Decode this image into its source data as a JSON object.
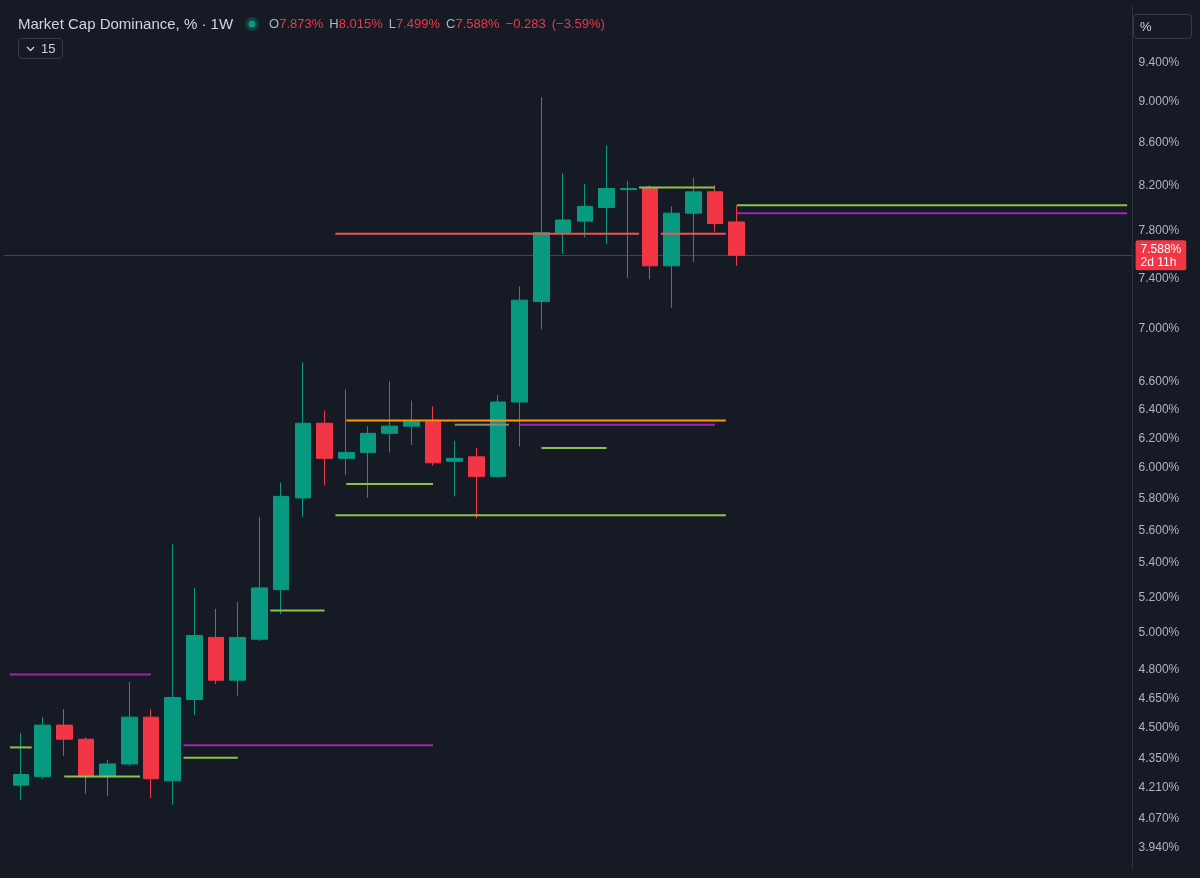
{
  "chart_data": {
    "type": "candlestick",
    "title": "Market Cap Dominance, % · 1W",
    "subtitle": "O7.873% H8.015% L7.499% C7.588% −0.283 (−3.59%)",
    "categories": [
      null,
      null,
      null,
      null,
      null,
      null,
      null,
      null,
      null,
      null,
      null,
      null,
      null,
      null,
      null,
      null,
      null,
      null,
      null,
      null,
      null,
      null,
      null,
      null,
      null,
      null,
      null,
      null,
      null,
      null,
      null,
      null,
      null,
      null,
      null,
      null,
      null,
      null,
      null,
      null,
      null,
      null,
      null,
      null,
      null,
      null,
      null,
      null,
      null,
      null,
      null,
      null,
      null,
      null,
      null,
      null,
      null,
      null,
      null,
      null,
      null,
      null,
      null,
      null,
      null,
      null,
      null,
      null,
      null,
      null,
      null,
      null,
      null,
      null,
      null,
      null,
      null,
      null,
      null,
      null,
      null,
      null,
      null,
      null,
      null,
      null,
      null,
      null,
      null,
      null,
      null,
      null,
      null,
      null,
      null,
      null,
      null,
      null,
      null,
      null,
      null,
      null,
      null,
      null
    ],
    "ohlc": [
      null,
      [
        4.22,
        4.47,
        4.15,
        4.27
      ],
      null,
      [
        4.26,
        4.55,
        4.25,
        4.51
      ],
      null,
      [
        4.51,
        4.59,
        4.36,
        4.44
      ],
      null,
      [
        4.44,
        4.45,
        4.18,
        4.26
      ],
      null,
      [
        4.26,
        4.34,
        4.17,
        4.32
      ],
      null,
      [
        4.32,
        4.73,
        4.31,
        4.55
      ],
      null,
      [
        4.55,
        4.59,
        4.16,
        4.25
      ],
      null,
      [
        4.24,
        5.51,
        4.13,
        4.65
      ],
      null,
      [
        4.64,
        5.25,
        4.56,
        4.98
      ],
      null,
      [
        4.97,
        5.13,
        4.72,
        4.74
      ],
      null,
      [
        4.74,
        5.17,
        4.66,
        4.97
      ],
      null,
      [
        4.96,
        5.68,
        4.95,
        5.25
      ],
      null,
      [
        5.24,
        5.9,
        5.1,
        5.81
      ],
      null,
      [
        5.8,
        6.74,
        5.68,
        6.3
      ],
      null,
      [
        6.3,
        6.39,
        5.88,
        6.06
      ],
      null,
      [
        6.06,
        6.54,
        5.95,
        6.1
      ],
      null,
      [
        6.1,
        6.28,
        5.8,
        6.23
      ],
      null,
      [
        6.23,
        6.6,
        6.1,
        6.28
      ],
      null,
      [
        6.28,
        6.46,
        6.15,
        6.31
      ],
      null,
      [
        6.31,
        6.42,
        6.01,
        6.03
      ],
      null,
      [
        6.04,
        6.18,
        5.81,
        6.06
      ],
      null,
      [
        6.07,
        6.13,
        5.67,
        5.94
      ],
      null,
      [
        5.94,
        6.5,
        5.93,
        6.45
      ],
      null,
      [
        6.45,
        7.33,
        6.14,
        7.22
      ],
      null,
      [
        7.21,
        9.04,
        6.99,
        7.78
      ],
      null,
      [
        7.78,
        8.31,
        7.6,
        7.89
      ],
      null,
      [
        7.88,
        8.21,
        7.74,
        8.01
      ],
      null,
      [
        8.0,
        8.57,
        7.68,
        8.17
      ],
      null,
      [
        8.16,
        8.24,
        7.4,
        8.17
      ],
      null,
      [
        8.17,
        8.2,
        7.39,
        7.5
      ],
      null,
      [
        7.5,
        8.01,
        7.16,
        7.95
      ],
      null,
      [
        7.95,
        8.27,
        7.53,
        8.14
      ],
      null,
      [
        8.14,
        8.2,
        7.79,
        7.86
      ],
      null,
      [
        7.873,
        8.015,
        7.499,
        7.588
      ],
      null,
      null,
      null,
      null,
      null,
      null,
      null,
      null,
      null,
      null,
      null,
      null,
      null,
      null,
      null,
      null,
      null,
      null,
      null,
      null,
      null,
      null,
      null,
      null,
      null,
      null,
      null,
      null,
      null,
      null,
      null,
      null,
      null,
      null,
      null,
      null
    ],
    "colors": [
      null,
      "#089981",
      null,
      "#089981",
      null,
      "#f23645",
      null,
      "#f23645",
      null,
      "#089981",
      null,
      "#089981",
      null,
      "#f23645",
      null,
      "#089981",
      null,
      "#089981",
      null,
      "#f23645",
      null,
      "#089981",
      null,
      "#089981",
      null,
      "#089981",
      null,
      "#089981",
      null,
      "#f23645",
      null,
      "#089981",
      null,
      "#089981",
      null,
      "#089981",
      null,
      "#089981",
      null,
      "#f23645",
      null,
      "#089981",
      null,
      "#f23645",
      null,
      "#089981",
      null,
      "#089981",
      null,
      "#089981",
      null,
      "#089981",
      null,
      "#089981",
      null,
      "#089981",
      null,
      "#089981",
      null,
      "#f23645",
      null,
      "#089981",
      null,
      "#089981",
      null,
      "#f23645",
      null,
      "#f23645",
      null,
      null,
      null,
      null,
      null,
      null,
      null,
      null,
      null,
      null,
      null,
      null,
      null,
      null,
      null,
      null,
      null,
      null,
      null,
      null,
      null,
      null,
      null,
      null,
      null,
      null,
      null,
      null,
      null,
      null,
      null,
      null,
      null,
      null,
      null,
      null
    ],
    "series": [
      {
        "type": "line",
        "color": "#8bc34a",
        "values": [
          4.4,
          4.4,
          4.4,
          null,
          null,
          null,
          null,
          null,
          null,
          null,
          null,
          null,
          null,
          null,
          null,
          null,
          null,
          null,
          null,
          null,
          null,
          null,
          null,
          null,
          null,
          null,
          null,
          null,
          null,
          null,
          null,
          null,
          null,
          null,
          null,
          null,
          null,
          null,
          null,
          null,
          null,
          null,
          null,
          null,
          null,
          null,
          null,
          null,
          null,
          null,
          null,
          null,
          null,
          null,
          null,
          null,
          null,
          null,
          null,
          null,
          null,
          null,
          null,
          null,
          null,
          null,
          null,
          null,
          null,
          null,
          null,
          null,
          null,
          null,
          null,
          null,
          null,
          null,
          null,
          null,
          null,
          null,
          null,
          null,
          null,
          null,
          null,
          null,
          null,
          null,
          null,
          null,
          null,
          null,
          null,
          null,
          null,
          null,
          null,
          null,
          null,
          null,
          null,
          null
        ]
      },
      {
        "type": "line",
        "color": "#9c27b0",
        "values": [
          4.77,
          4.77,
          4.77,
          4.77,
          4.77,
          4.77,
          4.77,
          4.77,
          4.77,
          4.77,
          4.77,
          4.77,
          4.77,
          4.77,
          null,
          null,
          null,
          null,
          null,
          null,
          null,
          null,
          null,
          null,
          null,
          null,
          null,
          null,
          null,
          null,
          null,
          null,
          null,
          null,
          null,
          null,
          null,
          null,
          null,
          null,
          null,
          null,
          null,
          null,
          null,
          null,
          null,
          null,
          null,
          null,
          null,
          null,
          null,
          null,
          null,
          null,
          null,
          null,
          null,
          null,
          null,
          null,
          null,
          null,
          null,
          null,
          null,
          null,
          null,
          null,
          null,
          null,
          null,
          null,
          null,
          null,
          null,
          null,
          null,
          null,
          null,
          null,
          null,
          null,
          null,
          null,
          null,
          null,
          null,
          null,
          null,
          null,
          null,
          null,
          null,
          null,
          null,
          null,
          null,
          null,
          null,
          null,
          null,
          null
        ]
      },
      {
        "type": "line",
        "color": "#8bc34a",
        "values": [
          null,
          null,
          null,
          null,
          null,
          4.26,
          4.26,
          4.26,
          4.26,
          4.26,
          4.26,
          4.26,
          4.26,
          null,
          null,
          null,
          null,
          null,
          null,
          null,
          null,
          null,
          null,
          null,
          null,
          null,
          null,
          null,
          null,
          null,
          null,
          null,
          null,
          null,
          null,
          null,
          null,
          null,
          null,
          null,
          null,
          null,
          null,
          null,
          null,
          null,
          null,
          null,
          null,
          null,
          null,
          null,
          null,
          null,
          null,
          null,
          null,
          null,
          null,
          null,
          null,
          null,
          null,
          null,
          null,
          null,
          null,
          null,
          null,
          null,
          null,
          null,
          null,
          null,
          null,
          null,
          null,
          null,
          null,
          null,
          null,
          null,
          null,
          null,
          null,
          null,
          null,
          null,
          null,
          null,
          null,
          null,
          null,
          null,
          null,
          null,
          null,
          null,
          null,
          null,
          null,
          null,
          null,
          null
        ]
      },
      {
        "type": "line",
        "color": "#9c27b0",
        "values": [
          null,
          null,
          null,
          null,
          null,
          null,
          null,
          null,
          null,
          null,
          null,
          null,
          null,
          null,
          null,
          null,
          4.41,
          4.41,
          4.41,
          4.41,
          4.41,
          4.41,
          4.41,
          4.41,
          4.41,
          4.41,
          4.41,
          4.41,
          4.41,
          4.41,
          4.41,
          4.41,
          4.41,
          4.41,
          4.41,
          4.41,
          4.41,
          4.41,
          4.41,
          4.41,
          null,
          null,
          null,
          null,
          null,
          null,
          null,
          null,
          null,
          null,
          null,
          null,
          null,
          null,
          null,
          null,
          null,
          null,
          null,
          null,
          null,
          null,
          null,
          null,
          null,
          null,
          null,
          null,
          null,
          null,
          null,
          null,
          null,
          null,
          null,
          null,
          null,
          null,
          null,
          null,
          null,
          null,
          null,
          null,
          null,
          null,
          null,
          null,
          null,
          null,
          null,
          null,
          null,
          null,
          null,
          null,
          null,
          null,
          null,
          null,
          null,
          null,
          null,
          null
        ]
      },
      {
        "type": "line",
        "color": "#8bc34a",
        "values": [
          null,
          null,
          null,
          null,
          null,
          null,
          null,
          null,
          null,
          null,
          null,
          null,
          null,
          null,
          null,
          null,
          4.35,
          4.35,
          4.35,
          4.35,
          4.35,
          4.35,
          null,
          null,
          null,
          null,
          null,
          null,
          null,
          null,
          null,
          null,
          null,
          null,
          null,
          null,
          null,
          null,
          null,
          null,
          null,
          null,
          null,
          null,
          null,
          null,
          null,
          null,
          null,
          null,
          null,
          null,
          null,
          null,
          null,
          null,
          null,
          null,
          null,
          null,
          null,
          null,
          null,
          null,
          null,
          null,
          null,
          null,
          null,
          null,
          null,
          null,
          null,
          null,
          null,
          null,
          null,
          null,
          null,
          null,
          null,
          null,
          null,
          null,
          null,
          null,
          null,
          null,
          null,
          null,
          null,
          null,
          null,
          null,
          null,
          null,
          null,
          null,
          null,
          null,
          null,
          null,
          null,
          null
        ]
      },
      {
        "type": "line",
        "color": "#8bc34a",
        "values": [
          null,
          null,
          null,
          null,
          null,
          null,
          null,
          null,
          null,
          null,
          null,
          null,
          null,
          null,
          null,
          null,
          null,
          null,
          null,
          null,
          null,
          null,
          null,
          null,
          5.12,
          5.12,
          5.12,
          5.12,
          5.12,
          5.12,
          null,
          null,
          null,
          null,
          null,
          null,
          null,
          null,
          null,
          null,
          null,
          null,
          null,
          null,
          null,
          null,
          null,
          null,
          null,
          null,
          null,
          null,
          null,
          null,
          null,
          null,
          null,
          null,
          null,
          null,
          null,
          null,
          null,
          null,
          null,
          null,
          null,
          null,
          null,
          null,
          null,
          null,
          null,
          null,
          null,
          null,
          null,
          null,
          null,
          null,
          null,
          null,
          null,
          null,
          null,
          null,
          null,
          null,
          null,
          null,
          null,
          null,
          null,
          null,
          null,
          null,
          null,
          null,
          null,
          null,
          null,
          null,
          null,
          null
        ]
      },
      {
        "type": "line",
        "color": "#8bc34a",
        "values": [
          null,
          null,
          null,
          null,
          null,
          null,
          null,
          null,
          null,
          null,
          null,
          null,
          null,
          null,
          null,
          null,
          null,
          null,
          null,
          null,
          null,
          null,
          null,
          null,
          null,
          null,
          null,
          null,
          null,
          null,
          null,
          5.89,
          5.89,
          5.89,
          5.89,
          5.89,
          5.89,
          5.89,
          5.89,
          5.89,
          null,
          null,
          null,
          null,
          null,
          null,
          null,
          null,
          null,
          null,
          null,
          null,
          null,
          null,
          null,
          null,
          null,
          null,
          null,
          null,
          null,
          null,
          null,
          null,
          null,
          null,
          null,
          null,
          null,
          null,
          null,
          null,
          null,
          null,
          null,
          null,
          null,
          null,
          null,
          null,
          null,
          null,
          null,
          null,
          null,
          null,
          null,
          null,
          null,
          null,
          null,
          null,
          null,
          null,
          null,
          null,
          null,
          null,
          null,
          null,
          null,
          null,
          null,
          null
        ]
      },
      {
        "type": "line",
        "color": "#8bc34a",
        "values": [
          null,
          null,
          null,
          null,
          null,
          null,
          null,
          null,
          null,
          null,
          null,
          null,
          null,
          null,
          null,
          null,
          null,
          null,
          null,
          null,
          null,
          null,
          null,
          null,
          null,
          null,
          null,
          null,
          null,
          null,
          5.69,
          5.69,
          5.69,
          5.69,
          5.69,
          5.69,
          5.69,
          5.69,
          5.69,
          5.69,
          5.69,
          5.69,
          5.69,
          5.69,
          5.69,
          5.69,
          5.69,
          5.69,
          5.69,
          5.69,
          5.69,
          5.69,
          5.69,
          5.69,
          5.69,
          5.69,
          5.69,
          5.69,
          5.69,
          5.69,
          5.69,
          5.69,
          5.69,
          5.69,
          5.69,
          5.69,
          5.69,
          null,
          null,
          null,
          null,
          null,
          null,
          null,
          null,
          null,
          null,
          null,
          null,
          null,
          null,
          null,
          null,
          null,
          null,
          null,
          null,
          null,
          null,
          null,
          null,
          null,
          null,
          null,
          null,
          null,
          null,
          null,
          null,
          null,
          null,
          null,
          null,
          null
        ]
      },
      {
        "type": "line",
        "color": "#ff9800",
        "values": [
          null,
          null,
          null,
          null,
          null,
          null,
          null,
          null,
          null,
          null,
          null,
          null,
          null,
          null,
          null,
          null,
          null,
          null,
          null,
          null,
          null,
          null,
          null,
          null,
          null,
          null,
          null,
          null,
          null,
          null,
          null,
          6.32,
          6.32,
          6.32,
          6.32,
          6.32,
          6.32,
          6.32,
          6.32,
          6.32,
          6.32,
          6.32,
          6.32,
          6.32,
          6.32,
          6.32,
          6.32,
          6.32,
          6.32,
          6.32,
          6.32,
          6.32,
          6.32,
          6.32,
          6.32,
          6.32,
          6.32,
          6.32,
          6.32,
          6.32,
          6.32,
          6.32,
          6.32,
          6.32,
          6.32,
          6.32,
          6.32,
          null,
          null,
          null,
          null,
          null,
          null,
          null,
          null,
          null,
          null,
          null,
          null,
          null,
          null,
          null,
          null,
          null,
          null,
          null,
          null,
          null,
          null,
          null,
          null,
          null,
          null,
          null,
          null,
          null,
          null,
          null,
          null,
          null,
          null,
          null,
          null,
          null
        ]
      },
      {
        "type": "line",
        "color": "#868993",
        "values": [
          null,
          null,
          null,
          null,
          null,
          null,
          null,
          null,
          null,
          null,
          null,
          null,
          null,
          null,
          null,
          null,
          null,
          null,
          null,
          null,
          null,
          null,
          null,
          null,
          null,
          null,
          null,
          null,
          null,
          null,
          null,
          null,
          null,
          null,
          null,
          null,
          null,
          null,
          null,
          null,
          null,
          6.29,
          6.29,
          6.29,
          6.29,
          6.29,
          6.29,
          null,
          null,
          null,
          null,
          null,
          null,
          null,
          null,
          null,
          null,
          null,
          null,
          null,
          null,
          null,
          null,
          null,
          null,
          null,
          null,
          null,
          null,
          null,
          null,
          null,
          null,
          null,
          null,
          null,
          null,
          null,
          null,
          null,
          null,
          null,
          null,
          null,
          null,
          null,
          null,
          null,
          null,
          null,
          null,
          null,
          null,
          null,
          null,
          null,
          null,
          null,
          null,
          null,
          null,
          null,
          null,
          null
        ]
      },
      {
        "type": "line",
        "color": "#9c27b0",
        "values": [
          null,
          null,
          null,
          null,
          null,
          null,
          null,
          null,
          null,
          null,
          null,
          null,
          null,
          null,
          null,
          null,
          null,
          null,
          null,
          null,
          null,
          null,
          null,
          null,
          null,
          null,
          null,
          null,
          null,
          null,
          null,
          null,
          null,
          null,
          null,
          null,
          null,
          null,
          null,
          null,
          null,
          null,
          null,
          null,
          null,
          null,
          null,
          6.29,
          6.29,
          6.29,
          6.29,
          6.29,
          6.29,
          6.29,
          6.29,
          6.29,
          6.29,
          6.29,
          6.29,
          6.29,
          6.29,
          6.29,
          6.29,
          6.29,
          6.29,
          6.29,
          null,
          null,
          null,
          null,
          null,
          null,
          null,
          null,
          null,
          null,
          null,
          null,
          null,
          null,
          null,
          null,
          null,
          null,
          null,
          null,
          null,
          null,
          null,
          null,
          null,
          null,
          null,
          null,
          null,
          null,
          null,
          null,
          null,
          null,
          null,
          null,
          null,
          null
        ]
      },
      {
        "type": "line",
        "color": "#8bc34a",
        "values": [
          null,
          null,
          null,
          null,
          null,
          null,
          null,
          null,
          null,
          null,
          null,
          null,
          null,
          null,
          null,
          null,
          null,
          null,
          null,
          null,
          null,
          null,
          null,
          null,
          null,
          null,
          null,
          null,
          null,
          null,
          null,
          null,
          null,
          null,
          null,
          null,
          null,
          null,
          null,
          null,
          null,
          null,
          null,
          null,
          null,
          null,
          null,
          null,
          null,
          6.13,
          6.13,
          6.13,
          6.13,
          6.13,
          6.13,
          6.13,
          null,
          null,
          null,
          null,
          null,
          null,
          null,
          null,
          null,
          null,
          null,
          null,
          null,
          null,
          null,
          null,
          null,
          null,
          null,
          null,
          null,
          null,
          null,
          null,
          null,
          null,
          null,
          null,
          null,
          null,
          null,
          null,
          null,
          null,
          null,
          null,
          null,
          null,
          null,
          null,
          null,
          null,
          null,
          null,
          null,
          null,
          null,
          null
        ]
      },
      {
        "type": "line",
        "color": "#ef5350",
        "values": [
          null,
          null,
          null,
          null,
          null,
          null,
          null,
          null,
          null,
          null,
          null,
          null,
          null,
          null,
          null,
          null,
          null,
          null,
          null,
          null,
          null,
          null,
          null,
          null,
          null,
          null,
          null,
          null,
          null,
          null,
          7.77,
          7.77,
          7.77,
          7.77,
          7.77,
          7.77,
          7.77,
          7.77,
          7.77,
          7.77,
          7.77,
          7.77,
          7.77,
          7.77,
          7.77,
          7.77,
          7.77,
          7.77,
          7.77,
          7.77,
          7.77,
          7.77,
          7.77,
          7.77,
          7.77,
          7.77,
          7.77,
          7.77,
          7.77,
          null,
          7.77,
          7.77,
          7.77,
          7.77,
          7.77,
          7.77,
          7.77,
          null,
          null,
          null,
          null,
          null,
          null,
          null,
          null,
          null,
          null,
          null,
          null,
          null,
          null,
          null,
          null,
          null,
          null,
          null,
          null,
          null,
          null,
          null,
          null,
          null,
          null,
          null,
          null,
          null,
          null,
          null,
          null,
          null,
          null,
          null,
          null,
          null
        ]
      },
      {
        "type": "line",
        "color": "#8bc34a",
        "values": [
          null,
          null,
          null,
          null,
          null,
          null,
          null,
          null,
          null,
          null,
          null,
          null,
          null,
          null,
          null,
          null,
          null,
          null,
          null,
          null,
          null,
          null,
          null,
          null,
          null,
          null,
          null,
          null,
          null,
          null,
          null,
          null,
          null,
          null,
          null,
          null,
          null,
          null,
          null,
          null,
          null,
          null,
          null,
          null,
          null,
          null,
          null,
          null,
          null,
          null,
          null,
          null,
          null,
          null,
          null,
          null,
          null,
          null,
          8.18,
          8.18,
          8.18,
          8.18,
          8.18,
          8.18,
          8.18,
          8.18,
          null,
          null,
          null,
          null,
          null,
          null,
          null,
          null,
          null,
          null,
          null,
          null,
          null,
          null,
          null,
          null,
          null,
          null,
          null,
          null,
          null,
          null,
          null,
          null,
          null,
          null,
          null,
          null,
          null,
          null,
          null,
          null,
          null,
          null,
          null,
          null,
          null,
          null
        ]
      },
      {
        "type": "line",
        "color": "#8bc34a",
        "values": [
          null,
          null,
          null,
          null,
          null,
          null,
          null,
          null,
          null,
          null,
          null,
          null,
          null,
          null,
          null,
          null,
          null,
          null,
          null,
          null,
          null,
          null,
          null,
          null,
          null,
          null,
          null,
          null,
          null,
          null,
          null,
          null,
          null,
          null,
          null,
          null,
          null,
          null,
          null,
          null,
          null,
          null,
          null,
          null,
          null,
          null,
          null,
          null,
          null,
          null,
          null,
          null,
          null,
          null,
          null,
          null,
          null,
          null,
          null,
          null,
          null,
          null,
          null,
          null,
          null,
          null,
          null,
          8.02,
          8.02,
          8.02,
          8.02,
          8.02,
          8.02,
          8.02,
          8.02,
          8.02,
          8.02,
          8.02,
          8.02,
          8.02,
          8.02,
          8.02,
          8.02,
          8.02,
          8.02,
          8.02,
          8.02,
          8.02,
          8.02,
          8.02,
          8.02,
          8.02,
          8.02,
          8.02,
          8.02,
          8.02,
          8.02,
          8.02,
          8.02,
          8.02,
          8.02,
          8.02,
          8.02,
          8.02
        ]
      },
      {
        "type": "line",
        "color": "#9c27b0",
        "values": [
          null,
          null,
          null,
          null,
          null,
          null,
          null,
          null,
          null,
          null,
          null,
          null,
          null,
          null,
          null,
          null,
          null,
          null,
          null,
          null,
          null,
          null,
          null,
          null,
          null,
          null,
          null,
          null,
          null,
          null,
          null,
          null,
          null,
          null,
          null,
          null,
          null,
          null,
          null,
          null,
          null,
          null,
          null,
          null,
          null,
          null,
          null,
          null,
          null,
          null,
          null,
          null,
          null,
          null,
          null,
          null,
          null,
          null,
          null,
          null,
          null,
          null,
          null,
          null,
          null,
          null,
          null,
          7.95,
          7.95,
          7.95,
          7.95,
          7.95,
          7.95,
          7.95,
          7.95,
          7.95,
          7.95,
          7.95,
          7.95,
          7.95,
          7.95,
          7.95,
          7.95,
          7.95,
          7.95,
          7.95,
          7.95,
          7.95,
          7.95,
          7.95,
          7.95,
          7.95,
          7.95,
          7.95,
          7.95,
          7.95,
          7.95,
          7.95,
          7.95,
          7.95,
          7.95,
          7.95,
          7.95,
          7.95
        ]
      }
    ],
    "ylim": [
      3.85,
      10
    ],
    "yticks": [
      {
        "value": 3.94,
        "label": "3.940%"
      },
      {
        "value": 4.07,
        "label": "4.070%"
      },
      {
        "value": 4.21,
        "label": "4.210%"
      },
      {
        "value": 4.35,
        "label": "4.350%"
      },
      {
        "value": 4.5,
        "label": "4.500%"
      },
      {
        "value": 4.65,
        "label": "4.650%"
      },
      {
        "value": 4.8,
        "label": "4.800%"
      },
      {
        "value": 5.0,
        "label": "5.000%"
      },
      {
        "value": 5.2,
        "label": "5.200%"
      },
      {
        "value": 5.4,
        "label": "5.400%"
      },
      {
        "value": 5.6,
        "label": "5.600%"
      },
      {
        "value": 5.8,
        "label": "5.800%"
      },
      {
        "value": 6.0,
        "label": "6.000%"
      },
      {
        "value": 6.2,
        "label": "6.200%"
      },
      {
        "value": 6.4,
        "label": "6.400%"
      },
      {
        "value": 6.6,
        "label": "6.600%"
      },
      {
        "value": 7.0,
        "label": "7.000%"
      },
      {
        "value": 7.4,
        "label": "7.400%"
      },
      {
        "value": 7.8,
        "label": "7.800%"
      },
      {
        "value": 8.2,
        "label": "8.200%"
      },
      {
        "value": 8.6,
        "label": "8.600%"
      },
      {
        "value": 9.0,
        "label": "9.000%"
      },
      {
        "value": 9.4,
        "label": "9.400%"
      }
    ],
    "log": true,
    "grid": false,
    "tick_labels": "y",
    "ref_lines": [
      {
        "axis": "y",
        "value": 7.588,
        "label": "7.588%",
        "color": "#f23645",
        "line_style": "dotted"
      }
    ],
    "annotations": [
      "2d 11h",
      "15",
      "%"
    ]
  }
}
